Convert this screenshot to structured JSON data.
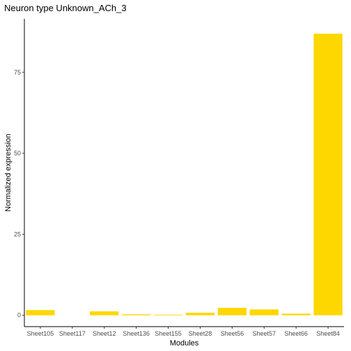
{
  "chart_data": {
    "type": "bar",
    "title": "Neuron type Unknown_ACh_3",
    "xlabel": "Modules",
    "ylabel": "Normalized expression",
    "categories": [
      "Sheet105",
      "Sheet117",
      "Sheet12",
      "Sheet136",
      "Sheet155",
      "Sheet28",
      "Sheet56",
      "Sheet57",
      "Sheet66",
      "Sheet84"
    ],
    "values": [
      1.6,
      0,
      1.2,
      0.3,
      0.2,
      0.8,
      2.3,
      1.8,
      0.5,
      86.9
    ],
    "ylim": [
      -3.5,
      91.5
    ],
    "yticks": [
      0,
      25,
      50,
      75
    ],
    "bar_color": "#FFD700",
    "grid": false,
    "legend": "none"
  }
}
